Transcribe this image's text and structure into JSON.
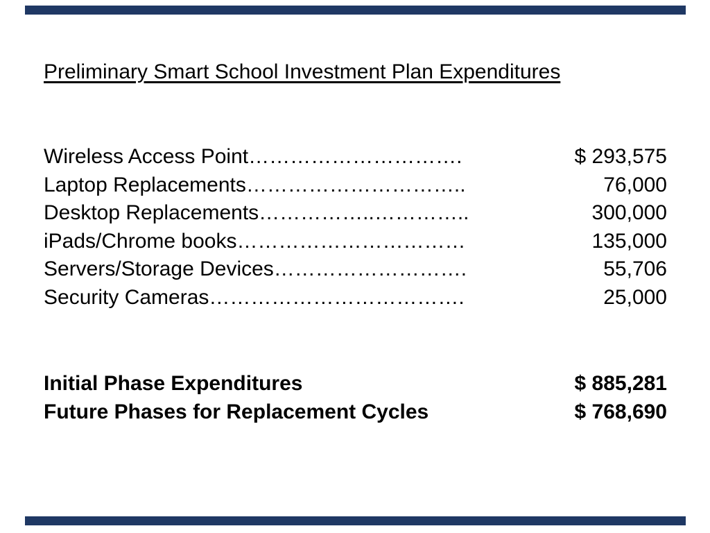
{
  "slide": {
    "title": "Preliminary Smart School Investment Plan Expenditures",
    "accent_color": "#1f3864",
    "expenditures": [
      {
        "label": "Wireless Access Point………………………….",
        "amount": "$ 293,575"
      },
      {
        "label": "Laptop Replacements…………………………..",
        "amount": "76,000"
      },
      {
        "label": "Desktop Replacements……………..…………..",
        "amount": "300,000"
      },
      {
        "label": "iPads/Chrome books……………………………",
        "amount": "135,000"
      },
      {
        "label": "Servers/Storage Devices……………………….",
        "amount": "55,706"
      },
      {
        "label": "Security Cameras……………………………….",
        "amount": "25,000"
      }
    ],
    "totals": [
      {
        "label": "Initial Phase Expenditures",
        "amount": "$ 885,281"
      },
      {
        "label": "Future Phases for Replacement Cycles",
        "amount": "$ 768,690"
      }
    ]
  }
}
